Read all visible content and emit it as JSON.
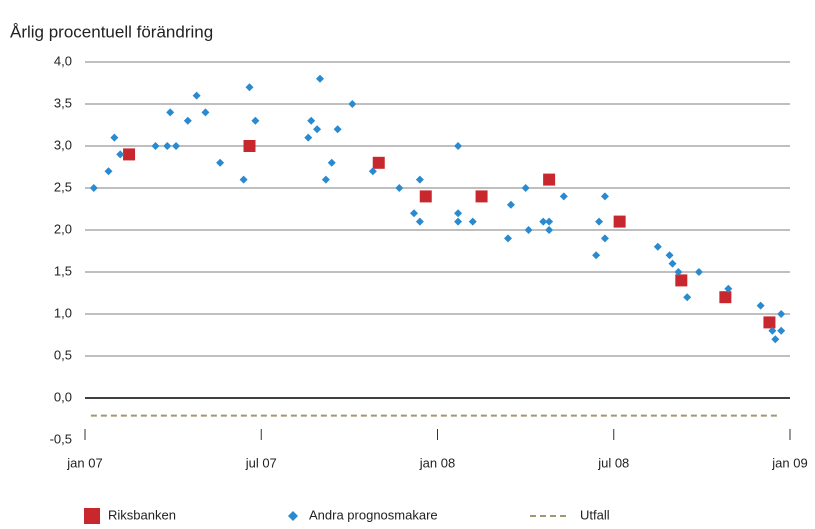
{
  "chart_data": {
    "type": "scatter",
    "title": "Årlig procentuell förändring",
    "xlim": [
      0,
      24
    ],
    "xticks": [
      {
        "value": 0,
        "label": "jan 07"
      },
      {
        "value": 6,
        "label": "jul 07"
      },
      {
        "value": 12,
        "label": "jan 08"
      },
      {
        "value": 18,
        "label": "jul 08"
      },
      {
        "value": 24,
        "label": "jan 09"
      }
    ],
    "ylim": [
      -0.5,
      4.0
    ],
    "yticks": [
      {
        "value": -0.5,
        "label": "-0,5"
      },
      {
        "value": 0,
        "label": "0,0"
      },
      {
        "value": 0.5,
        "label": "0,5"
      },
      {
        "value": 1.0,
        "label": "1,0"
      },
      {
        "value": 1.5,
        "label": "1,5"
      },
      {
        "value": 2.0,
        "label": "2,0"
      },
      {
        "value": 2.5,
        "label": "2,5"
      },
      {
        "value": 3.0,
        "label": "3,0"
      },
      {
        "value": 3.5,
        "label": "3,5"
      },
      {
        "value": 4.0,
        "label": "4,0"
      }
    ],
    "grid": true,
    "legend": "bottom",
    "series": [
      {
        "name": "Riksbanken",
        "color": "#c8282d",
        "marker": "square",
        "x": [
          1.5,
          5.6,
          10.0,
          11.6,
          13.5,
          15.8,
          18.2,
          20.3,
          21.8,
          23.3
        ],
        "values": [
          2.9,
          3.0,
          2.8,
          2.4,
          2.4,
          2.6,
          2.1,
          1.4,
          1.2,
          0.9
        ]
      },
      {
        "name": "Andra prognosmakare",
        "color": "#2a8ad0",
        "marker": "diamond",
        "x": [
          0.3,
          0.8,
          1.0,
          1.2,
          2.4,
          2.8,
          2.9,
          3.1,
          3.5,
          3.8,
          4.1,
          4.6,
          5.4,
          5.6,
          5.8,
          7.6,
          7.7,
          7.9,
          8.0,
          8.2,
          8.4,
          8.6,
          9.1,
          9.8,
          10.7,
          11.2,
          11.4,
          11.4,
          12.7,
          12.7,
          12.7,
          13.2,
          14.4,
          14.5,
          15.0,
          15.1,
          15.6,
          15.8,
          15.8,
          16.3,
          17.4,
          17.5,
          17.7,
          17.7,
          19.5,
          19.9,
          20.0,
          20.2,
          20.5,
          20.9,
          21.9,
          23.0,
          23.4,
          23.5,
          23.7,
          23.7
        ],
        "values": [
          2.5,
          2.7,
          3.1,
          2.9,
          3.0,
          3.0,
          3.4,
          3.0,
          3.3,
          3.6,
          3.4,
          2.8,
          2.6,
          3.7,
          3.3,
          3.1,
          3.3,
          3.2,
          3.8,
          2.6,
          2.8,
          3.2,
          3.5,
          2.7,
          2.5,
          2.2,
          2.6,
          2.1,
          3.0,
          2.2,
          2.1,
          2.1,
          1.9,
          2.3,
          2.5,
          2.0,
          2.1,
          2.1,
          2.0,
          2.4,
          1.7,
          2.1,
          2.4,
          1.9,
          1.8,
          1.7,
          1.6,
          1.5,
          1.2,
          1.5,
          1.3,
          1.1,
          0.8,
          0.7,
          1.0,
          0.8
        ]
      },
      {
        "name": "Utfall",
        "color": "#a09870",
        "marker": "dashed-line",
        "x": [
          0.2,
          23.6
        ],
        "values": [
          -0.21,
          -0.21
        ]
      }
    ]
  }
}
